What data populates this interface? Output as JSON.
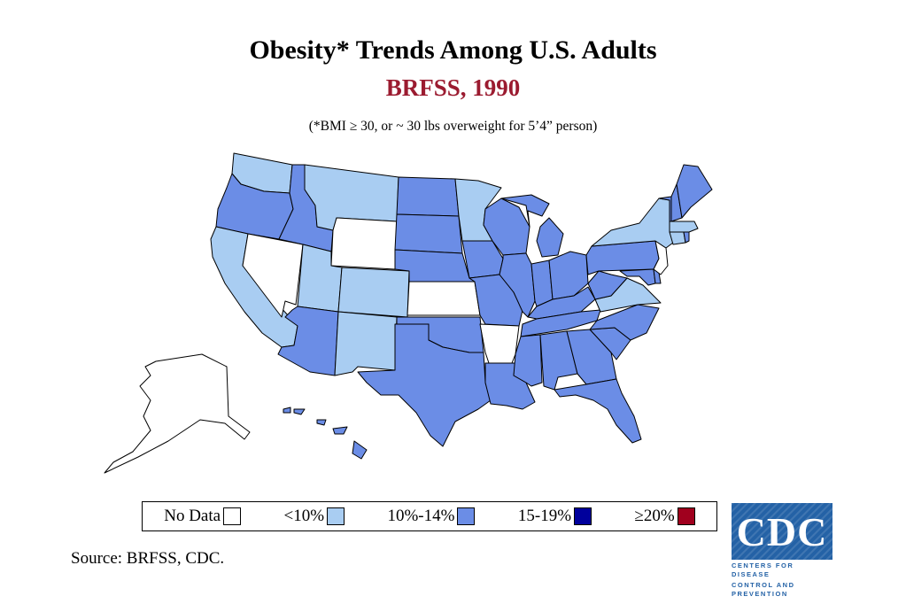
{
  "title": "Obesity* Trends Among U.S. Adults",
  "subtitle": "BRFSS, 1990",
  "note": "(*BMI ≥ 30, or ~ 30 lbs overweight for 5’4” person)",
  "source": "Source: BRFSS, CDC.",
  "colors": {
    "no_data": "#ffffff",
    "lt10": "#a9cdf2",
    "p10_14": "#6b8de6",
    "p15_19": "#00009c",
    "ge20": "#a0001e",
    "subtitle": "#9b1b30"
  },
  "legend": [
    {
      "label": "No Data",
      "color": "#ffffff"
    },
    {
      "label": "<10%",
      "color": "#a9cdf2"
    },
    {
      "label": "10%-14%",
      "color": "#6b8de6"
    },
    {
      "label": "15-19%",
      "color": "#00009c"
    },
    {
      "label": "≥20%",
      "color": "#a0001e"
    }
  ],
  "state_category": {
    "WA": "lt10",
    "OR": "p10_14",
    "CA": "lt10",
    "NV": "no_data",
    "ID": "p10_14",
    "MT": "lt10",
    "WY": "no_data",
    "UT": "lt10",
    "CO": "lt10",
    "AZ": "p10_14",
    "NM": "lt10",
    "ND": "p10_14",
    "SD": "p10_14",
    "NE": "p10_14",
    "KS": "no_data",
    "OK": "p10_14",
    "TX": "p10_14",
    "MN": "lt10",
    "IA": "p10_14",
    "MO": "p10_14",
    "AR": "no_data",
    "LA": "p10_14",
    "WI": "p10_14",
    "IL": "p10_14",
    "MI": "p10_14",
    "IN": "p10_14",
    "OH": "p10_14",
    "KY": "p10_14",
    "TN": "p10_14",
    "MS": "p10_14",
    "AL": "p10_14",
    "GA": "p10_14",
    "FL": "p10_14",
    "SC": "p10_14",
    "NC": "p10_14",
    "VA": "lt10",
    "WV": "p10_14",
    "MD": "p10_14",
    "DE": "p10_14",
    "PA": "p10_14",
    "NJ": "no_data",
    "NY": "lt10",
    "CT": "lt10",
    "RI": "p10_14",
    "MA": "lt10",
    "VT": "p10_14",
    "NH": "p10_14",
    "ME": "p10_14",
    "AK": "no_data",
    "HI": "p10_14"
  },
  "logo": {
    "text": "CDC",
    "line1": "CENTERS FOR DISEASE",
    "line2": "CONTROL AND PREVENTION"
  }
}
